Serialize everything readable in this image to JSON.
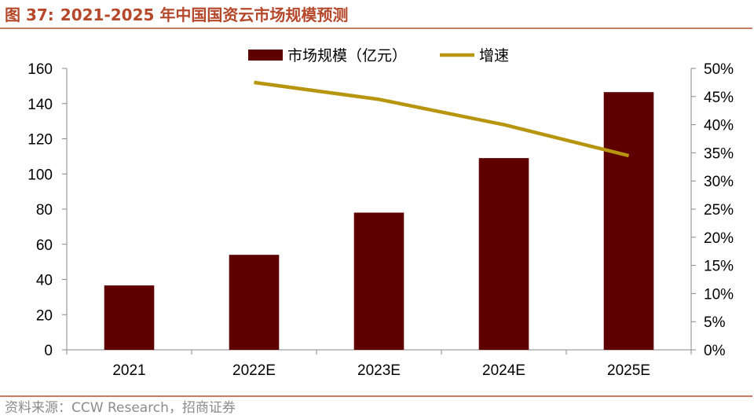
{
  "figure": {
    "number": "图 37:",
    "title": "2021-2025 年中国国资云市场规模预测",
    "source": "资料来源：CCW Research，招商证券"
  },
  "colors": {
    "title": "#b5472a",
    "rule": "#c97c63",
    "bar": "#5e0000",
    "line": "#b8950f",
    "axis": "#888888",
    "source": "#8c8c8c"
  },
  "chart_data": {
    "type": "bar",
    "categories": [
      "2021",
      "2022E",
      "2023E",
      "2024E",
      "2025E"
    ],
    "series": [
      {
        "name": "市场规模（亿元）",
        "type": "bar",
        "axis": "left",
        "values": [
          36.6,
          54,
          78,
          109,
          146.5
        ]
      },
      {
        "name": "增速",
        "type": "line",
        "axis": "right",
        "values": [
          null,
          47.5,
          44.5,
          40,
          34.5
        ]
      }
    ],
    "ylim": [
      0,
      160
    ],
    "yticks": [
      "0",
      "20",
      "40",
      "60",
      "80",
      "100",
      "120",
      "140",
      "160"
    ],
    "y2lim": [
      0,
      50
    ],
    "y2ticks": [
      "0%",
      "5%",
      "10%",
      "15%",
      "20%",
      "25%",
      "30%",
      "35%",
      "40%",
      "45%",
      "50%"
    ],
    "legend": "top-center",
    "grid": false
  }
}
